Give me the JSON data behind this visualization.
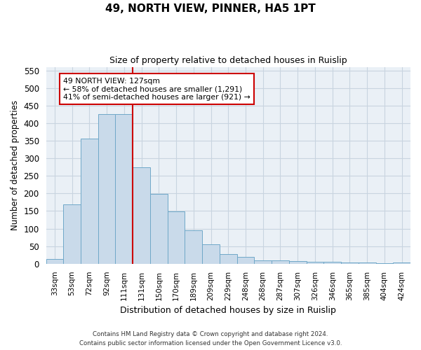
{
  "title": "49, NORTH VIEW, PINNER, HA5 1PT",
  "subtitle": "Size of property relative to detached houses in Ruislip",
  "xlabel": "Distribution of detached houses by size in Ruislip",
  "ylabel": "Number of detached properties",
  "categories": [
    "33sqm",
    "53sqm",
    "72sqm",
    "92sqm",
    "111sqm",
    "131sqm",
    "150sqm",
    "170sqm",
    "189sqm",
    "209sqm",
    "229sqm",
    "248sqm",
    "268sqm",
    "287sqm",
    "307sqm",
    "326sqm",
    "346sqm",
    "365sqm",
    "385sqm",
    "404sqm",
    "424sqm"
  ],
  "bar_heights": [
    13,
    168,
    357,
    425,
    425,
    275,
    198,
    148,
    95,
    55,
    27,
    20,
    10,
    10,
    8,
    5,
    5,
    3,
    3,
    1,
    3
  ],
  "bar_color": "#c9daea",
  "bar_edge_color": "#6fa8c8",
  "property_value": "127sqm",
  "annotation_text_line1": "49 NORTH VIEW: 127sqm",
  "annotation_text_line2": "← 58% of detached houses are smaller (1,291)",
  "annotation_text_line3": "41% of semi-detached houses are larger (921) →",
  "vline_color": "#cc0000",
  "annotation_box_color": "#ffffff",
  "annotation_box_edge": "#cc0000",
  "ylim": [
    0,
    560
  ],
  "yticks": [
    0,
    50,
    100,
    150,
    200,
    250,
    300,
    350,
    400,
    450,
    500,
    550
  ],
  "grid_color": "#c8d4e0",
  "footnote_line1": "Contains HM Land Registry data © Crown copyright and database right 2024.",
  "footnote_line2": "Contains public sector information licensed under the Open Government Licence v3.0.",
  "bg_color": "#eaf0f6",
  "fig_bg_color": "#ffffff"
}
